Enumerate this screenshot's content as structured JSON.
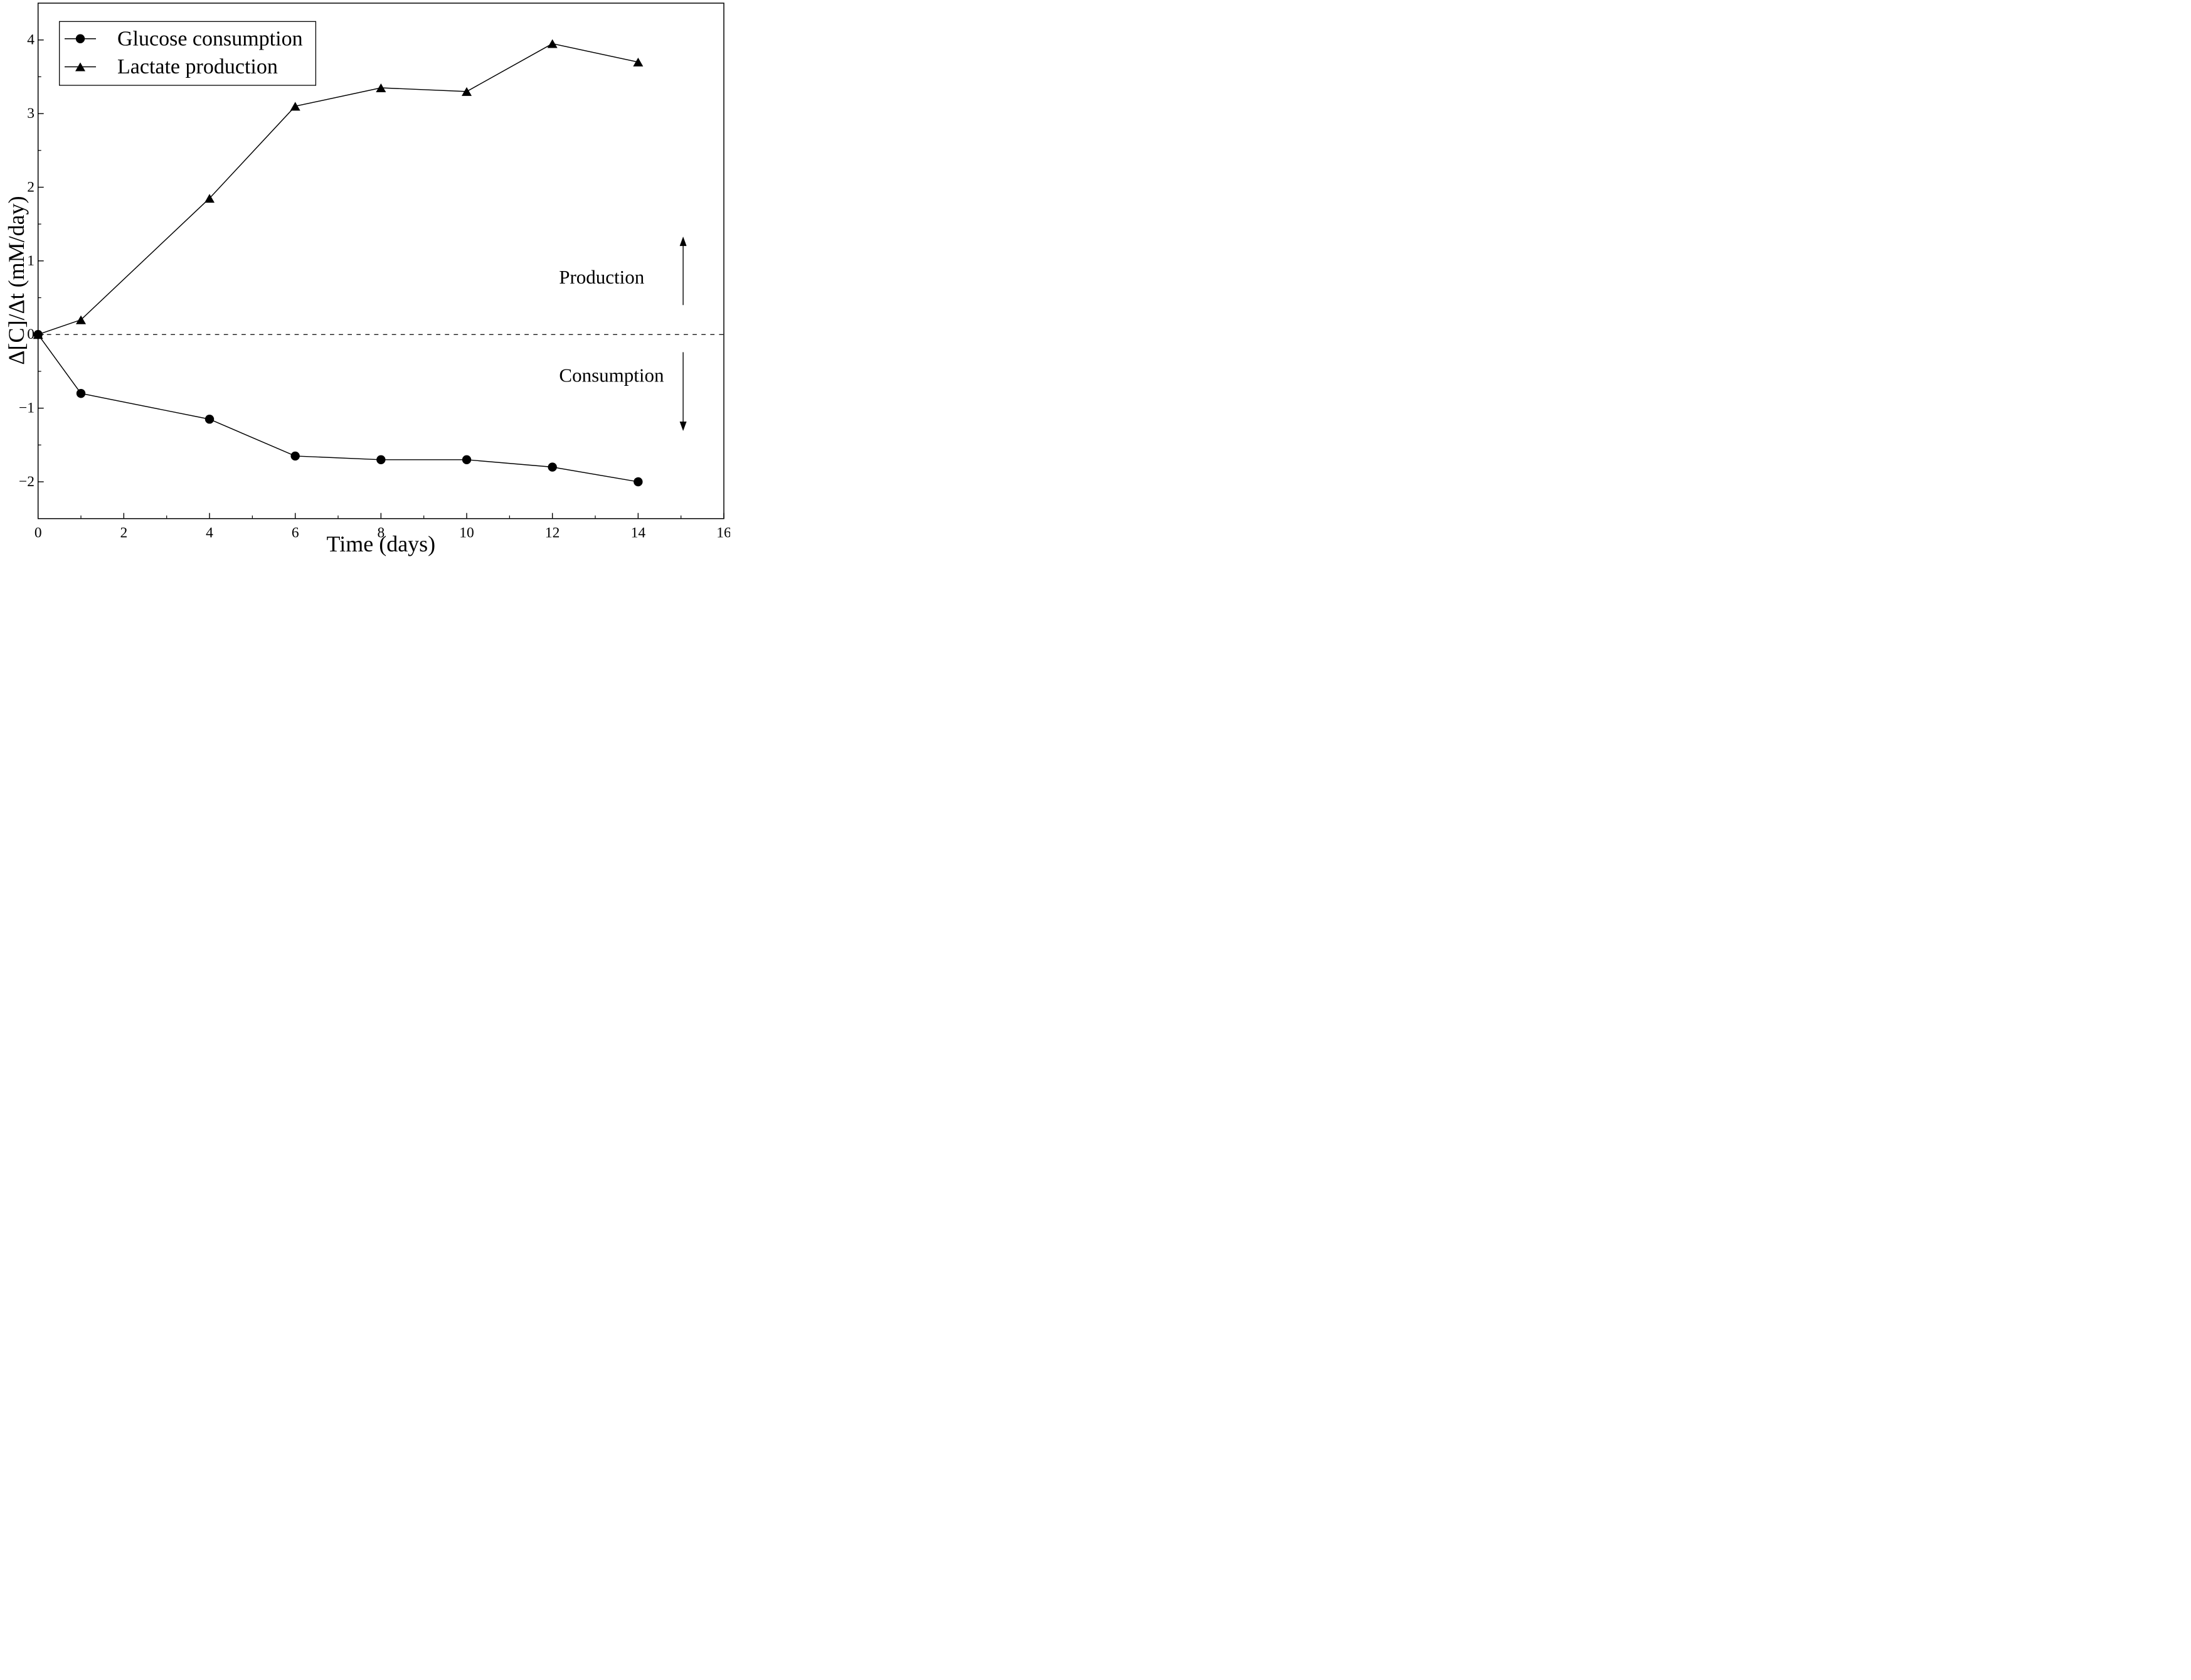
{
  "colors": {
    "foreground": "#000000",
    "background": "#ffffff"
  },
  "chart_data": {
    "type": "line",
    "title": "",
    "xlabel": "Time (days)",
    "ylabel": "Δ[C]/Δt (mM/day)",
    "xlim": [
      0,
      16
    ],
    "ylim": [
      -2.5,
      4.5
    ],
    "x_major_ticks": [
      0,
      2,
      4,
      6,
      8,
      10,
      12,
      14,
      16
    ],
    "x_minor_ticks": [
      1,
      3,
      5,
      7,
      9,
      11,
      13,
      15
    ],
    "y_major_ticks": [
      -2,
      -1,
      0,
      1,
      2,
      3,
      4
    ],
    "y_minor_ticks": [
      -1.5,
      -0.5,
      0.5,
      1.5,
      2.5,
      3.5
    ],
    "grid": false,
    "zero_line": {
      "y": 0,
      "style": "dashed"
    },
    "x": [
      0,
      1,
      4,
      6,
      8,
      10,
      12,
      14
    ],
    "series": [
      {
        "name": "Glucose consumption",
        "marker": "circle",
        "color": "#000000",
        "values": [
          0,
          -0.8,
          -1.15,
          -1.65,
          -1.7,
          -1.7,
          -1.8,
          -2.0
        ]
      },
      {
        "name": "Lactate production",
        "marker": "triangle",
        "color": "#000000",
        "values": [
          0,
          0.2,
          1.85,
          3.1,
          3.35,
          3.3,
          3.95,
          3.7
        ]
      }
    ],
    "legend": {
      "position": "top-left",
      "items": [
        {
          "label": "Glucose consumption",
          "marker": "circle"
        },
        {
          "label": "Lactate production",
          "marker": "triangle"
        }
      ]
    },
    "annotations": [
      {
        "text": "Production",
        "x": 13.15,
        "y": 0.78,
        "arrow": {
          "direction": "up",
          "x": 15.05,
          "y_from": 0.4,
          "y_to": 1.33
        }
      },
      {
        "text": "Consumption",
        "x": 13.38,
        "y": -0.55,
        "arrow": {
          "direction": "down",
          "x": 15.05,
          "y_from": -0.24,
          "y_to": -1.31
        }
      }
    ]
  }
}
